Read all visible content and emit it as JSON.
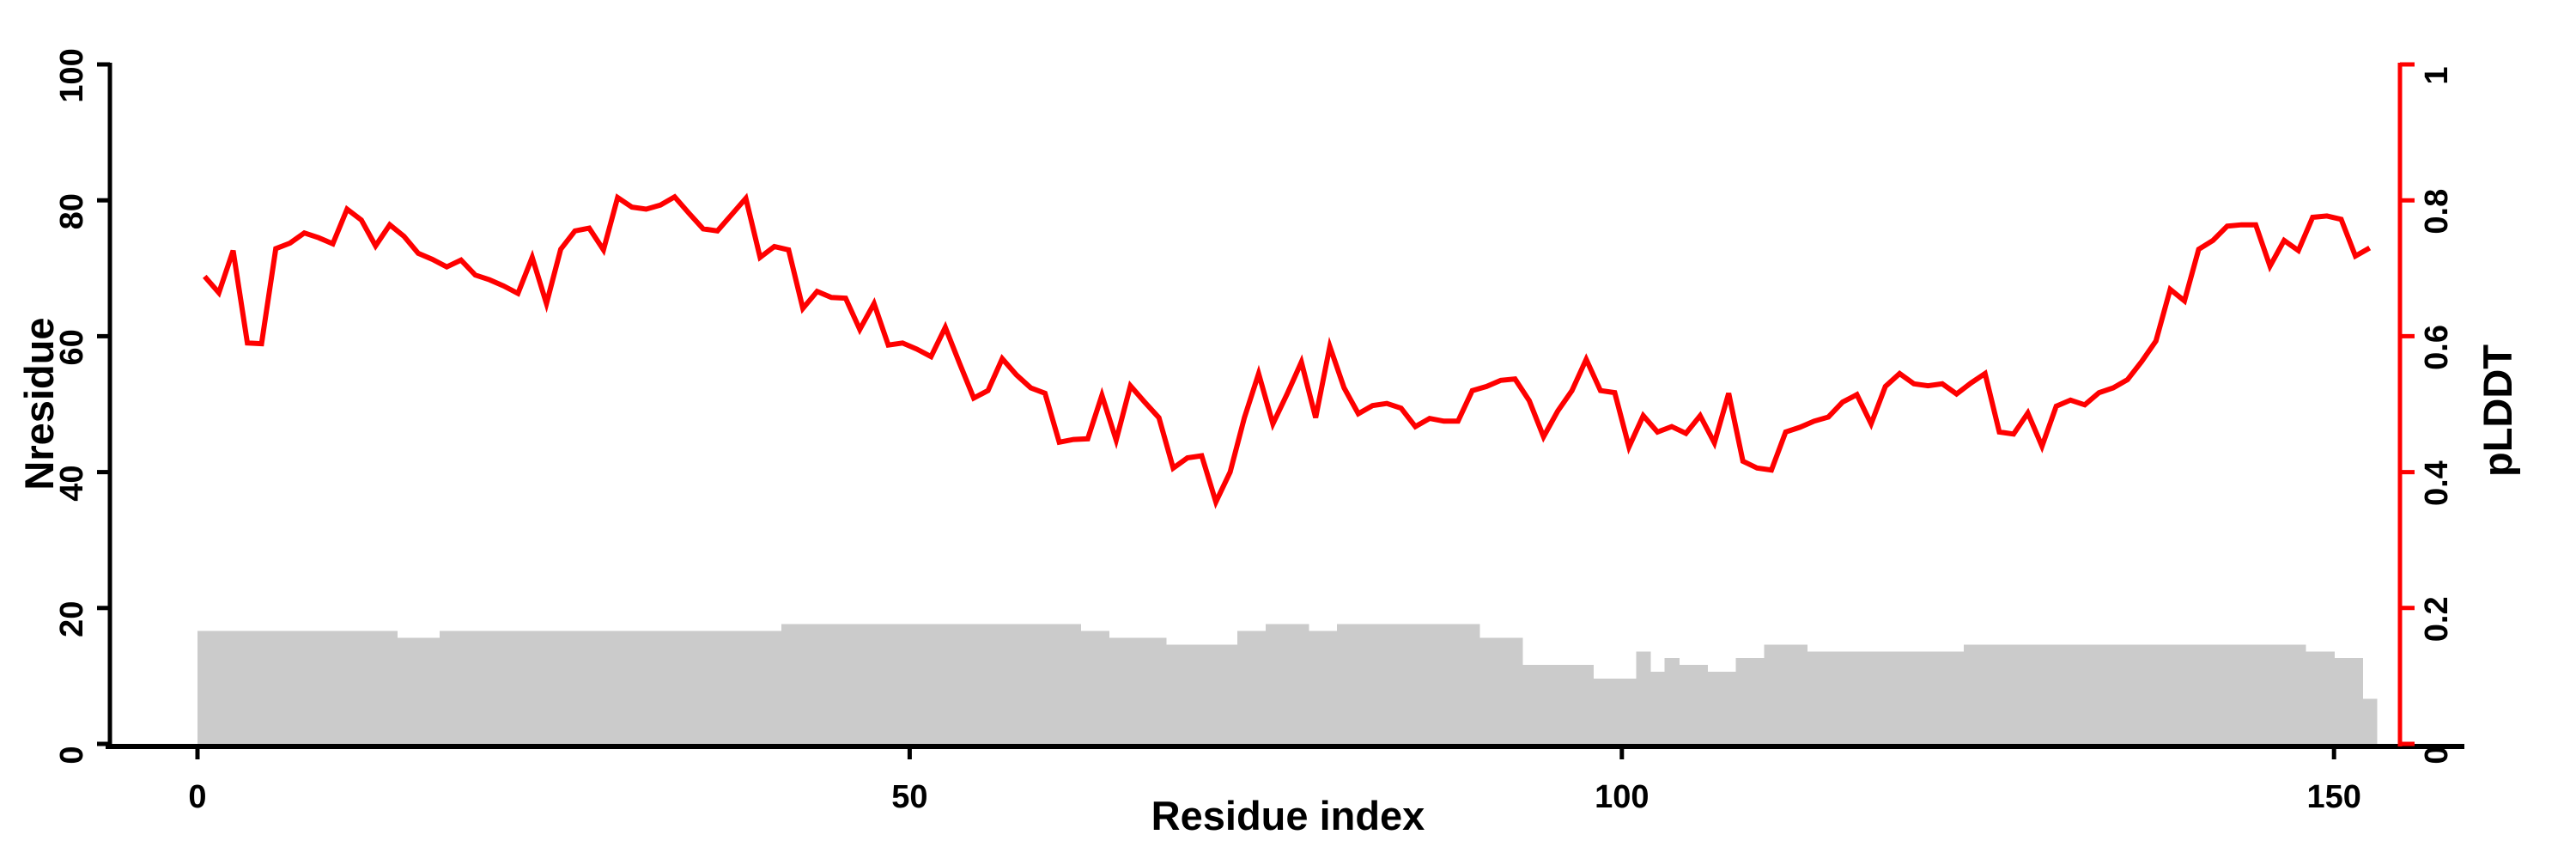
{
  "chart_data": {
    "type": "composite",
    "title": "",
    "xlabel": "Residue index",
    "ylabel_left": "Nresidue",
    "ylabel_right": "pLDDT",
    "x_axis": {
      "min": 0,
      "max": 160,
      "ticks": [
        0,
        50,
        100,
        150
      ]
    },
    "y_axis_left": {
      "min": 0,
      "max": 100,
      "ticks": [
        0,
        20,
        40,
        60,
        80,
        100
      ]
    },
    "y_axis_right": {
      "min": 0,
      "max": 1,
      "ticks": [
        0,
        0.2,
        0.4,
        0.6,
        0.8,
        1
      ]
    },
    "grid": false,
    "legend": "none",
    "colors": {
      "line": "#fe0000",
      "bars": "#cbcbcb",
      "axis": "#000000",
      "right_axis": "#fe0000",
      "background": "#ffffff"
    },
    "residue_start": 1,
    "n_residues": 153,
    "series": [
      {
        "name": "Nresidue",
        "type": "bar",
        "axis": "left",
        "values": [
          17,
          17,
          17,
          17,
          17,
          17,
          17,
          17,
          17,
          17,
          17,
          17,
          17,
          17,
          16,
          16,
          16,
          17,
          17,
          17,
          17,
          17,
          17,
          17,
          17,
          17,
          17,
          17,
          17,
          17,
          17,
          17,
          17,
          17,
          17,
          17,
          17,
          17,
          17,
          17,
          17,
          18,
          18,
          18,
          18,
          18,
          18,
          18,
          18,
          18,
          18,
          18,
          18,
          18,
          18,
          18,
          18,
          18,
          18,
          18,
          18,
          18,
          17,
          17,
          16,
          16,
          16,
          16,
          15,
          15,
          15,
          15,
          15,
          17,
          17,
          18,
          18,
          18,
          17,
          17,
          18,
          18,
          18,
          18,
          18,
          18,
          18,
          18,
          18,
          18,
          16,
          16,
          16,
          12,
          12,
          12,
          12,
          12,
          10,
          10,
          10,
          14,
          11,
          13,
          12,
          12,
          11,
          11,
          13,
          13,
          15,
          15,
          15,
          14,
          14,
          14,
          14,
          14,
          14,
          14,
          14,
          14,
          14,
          14,
          15,
          15,
          15,
          15,
          15,
          15,
          15,
          15,
          15,
          15,
          15,
          15,
          15,
          15,
          15,
          15,
          15,
          15,
          15,
          15,
          15,
          15,
          15,
          15,
          14,
          14,
          13,
          13,
          7
        ]
      },
      {
        "name": "pLDDT",
        "type": "line",
        "axis": "right",
        "values": [
          0.688,
          0.664,
          0.726,
          0.59,
          0.589,
          0.729,
          0.737,
          0.752,
          0.745,
          0.736,
          0.787,
          0.771,
          0.733,
          0.764,
          0.747,
          0.722,
          0.713,
          0.702,
          0.712,
          0.69,
          0.683,
          0.674,
          0.663,
          0.716,
          0.648,
          0.728,
          0.755,
          0.759,
          0.727,
          0.804,
          0.79,
          0.787,
          0.793,
          0.805,
          0.781,
          0.758,
          0.755,
          0.779,
          0.803,
          0.716,
          0.732,
          0.727,
          0.641,
          0.666,
          0.657,
          0.656,
          0.61,
          0.648,
          0.587,
          0.59,
          0.581,
          0.57,
          0.613,
          0.56,
          0.509,
          0.52,
          0.567,
          0.543,
          0.524,
          0.516,
          0.444,
          0.448,
          0.449,
          0.513,
          0.447,
          0.527,
          0.503,
          0.48,
          0.406,
          0.421,
          0.424,
          0.356,
          0.4,
          0.48,
          0.545,
          0.471,
          0.515,
          0.562,
          0.48,
          0.585,
          0.524,
          0.486,
          0.498,
          0.501,
          0.494,
          0.467,
          0.479,
          0.475,
          0.475,
          0.52,
          0.526,
          0.535,
          0.537,
          0.505,
          0.452,
          0.49,
          0.52,
          0.566,
          0.52,
          0.517,
          0.437,
          0.483,
          0.459,
          0.467,
          0.457,
          0.483,
          0.443,
          0.516,
          0.416,
          0.406,
          0.403,
          0.459,
          0.466,
          0.475,
          0.481,
          0.503,
          0.514,
          0.471,
          0.526,
          0.545,
          0.53,
          0.527,
          0.53,
          0.515,
          0.531,
          0.545,
          0.459,
          0.456,
          0.487,
          0.438,
          0.497,
          0.506,
          0.499,
          0.517,
          0.524,
          0.536,
          0.563,
          0.593,
          0.669,
          0.652,
          0.728,
          0.741,
          0.762,
          0.764,
          0.764,
          0.703,
          0.741,
          0.726,
          0.775,
          0.777,
          0.772,
          0.718,
          0.73
        ]
      }
    ]
  }
}
